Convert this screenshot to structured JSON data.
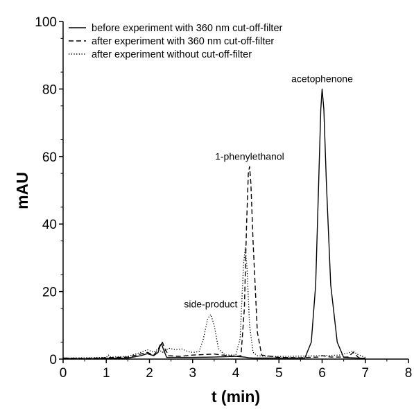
{
  "chart_data": {
    "type": "line",
    "xlabel": "t (min)",
    "ylabel": "mAU",
    "xlim": [
      0,
      8
    ],
    "ylim": [
      0,
      100
    ],
    "xticks": [
      "0",
      "1",
      "2",
      "3",
      "4",
      "5",
      "6",
      "7",
      "8"
    ],
    "yticks": [
      "0",
      "20",
      "40",
      "60",
      "80",
      "100"
    ],
    "grid": false,
    "legend_position": "top-left",
    "series": [
      {
        "name": "before experiment with 360 nm cut-off-filter",
        "style": "solid",
        "x": [
          0,
          0.5,
          1.0,
          1.5,
          1.8,
          1.95,
          2.1,
          2.2,
          2.25,
          2.28,
          2.32,
          2.4,
          2.6,
          3.0,
          3.5,
          4.0,
          4.2,
          4.3,
          4.4,
          5.0,
          5.6,
          5.75,
          5.85,
          5.92,
          5.97,
          6.0,
          6.04,
          6.1,
          6.2,
          6.35,
          6.5,
          6.8,
          7.0
        ],
        "y": [
          0.2,
          0.1,
          0.2,
          0.3,
          1.0,
          1.6,
          1.0,
          2.0,
          4.0,
          4.6,
          3.0,
          0.5,
          0.5,
          0.5,
          0.6,
          0.8,
          0.6,
          0.4,
          0.3,
          0.3,
          0.3,
          5,
          22,
          52,
          74,
          80,
          74,
          52,
          22,
          5,
          0.5,
          0.3,
          0.2
        ]
      },
      {
        "name": "after experiment with 360 nm cut-off-filter",
        "style": "dashed",
        "x": [
          0,
          0.5,
          1.0,
          1.5,
          1.8,
          1.95,
          2.1,
          2.2,
          2.26,
          2.3,
          2.35,
          2.45,
          2.7,
          3.0,
          3.5,
          3.8,
          4.0,
          4.12,
          4.2,
          4.25,
          4.29,
          4.32,
          4.35,
          4.4,
          4.5,
          4.6,
          5.0,
          5.5,
          5.9,
          6.0,
          6.2,
          6.6,
          6.72,
          6.85,
          7.0
        ],
        "y": [
          0.3,
          0.2,
          0.4,
          0.6,
          1.5,
          2.0,
          1.2,
          2.8,
          4.6,
          5.0,
          3.2,
          1.0,
          0.8,
          1.2,
          1.5,
          1.0,
          0.8,
          1.0,
          15,
          40,
          55,
          57,
          52,
          35,
          8,
          1.2,
          0.5,
          0.4,
          0.6,
          1.0,
          0.6,
          0.6,
          2.0,
          0.4,
          0.2
        ]
      },
      {
        "name": "after experiment without cut-off-filter",
        "style": "dotted",
        "x": [
          0,
          0.5,
          1.0,
          1.05,
          1.1,
          1.5,
          1.8,
          1.95,
          2.1,
          2.2,
          2.3,
          2.45,
          2.6,
          2.75,
          2.9,
          3.0,
          3.15,
          3.25,
          3.35,
          3.42,
          3.5,
          3.6,
          3.75,
          4.0,
          4.1,
          4.18,
          4.22,
          4.26,
          4.32,
          4.4,
          4.5,
          4.6,
          4.8,
          5.2,
          5.6,
          6.0,
          6.4,
          6.65,
          6.72,
          6.8,
          7.0
        ],
        "y": [
          0.3,
          0.4,
          0.5,
          1.2,
          0.6,
          0.8,
          2.0,
          2.8,
          2.0,
          3.0,
          2.0,
          3.2,
          2.8,
          3.0,
          2.2,
          2.0,
          2.2,
          6,
          12,
          13.2,
          10,
          3,
          1.2,
          1.2,
          6,
          28,
          33,
          27,
          10,
          2,
          1.0,
          0.9,
          0.8,
          0.8,
          0.9,
          1.0,
          1.2,
          2.0,
          2.5,
          1.5,
          0.5
        ]
      }
    ],
    "annotations": [
      {
        "text": "acetophenone",
        "x": 6.0,
        "y": 80
      },
      {
        "text": "1-phenylethanol",
        "x": 4.32,
        "y": 57
      },
      {
        "text": "side-product",
        "x": 3.42,
        "y": 13.2
      }
    ]
  }
}
